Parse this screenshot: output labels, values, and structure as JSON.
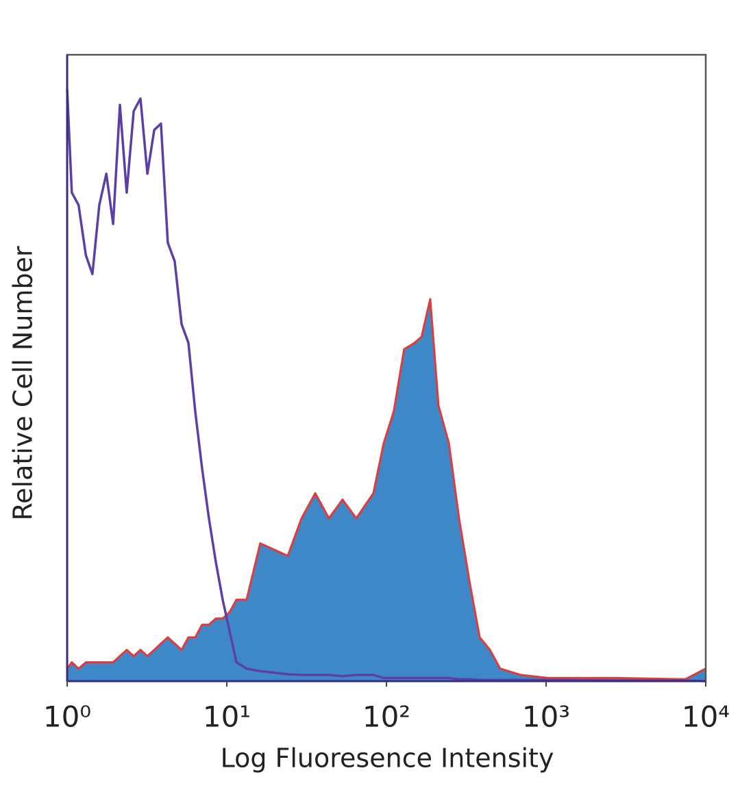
{
  "chart_data": {
    "type": "histogram-overlay",
    "xlabel": "Log Fluoresence Intensity",
    "ylabel": "Relative Cell Number",
    "xscale": "log",
    "xlim": [
      1,
      10000
    ],
    "ylim": [
      0,
      100
    ],
    "xticks": [
      {
        "value": 1,
        "label": "10⁰"
      },
      {
        "value": 10,
        "label": "10¹"
      },
      {
        "value": 100,
        "label": "10²"
      },
      {
        "value": 1000,
        "label": "10³"
      },
      {
        "value": 10000,
        "label": "10⁴"
      }
    ],
    "grid": false,
    "x": [
      1,
      1.07,
      1.18,
      1.31,
      1.44,
      1.59,
      1.76,
      1.94,
      2.14,
      2.36,
      2.61,
      2.88,
      3.18,
      3.51,
      3.87,
      4.27,
      4.72,
      5.21,
      5.75,
      6.35,
      7.0,
      7.73,
      8.54,
      9.42,
      10.4,
      11.5,
      13.3,
      16.2,
      24.1,
      29.4,
      35.8,
      43.6,
      53.1,
      64.7,
      82.8,
      96.1,
      111,
      129,
      150,
      166,
      188,
      212,
      246,
      285,
      331,
      384,
      445,
      516,
      694,
      1030,
      2770,
      7430,
      10000
    ],
    "series": [
      {
        "color": "#3f88c8",
        "outline": "#e23a3a",
        "filled": true,
        "values": [
          2,
          3,
          2,
          3,
          3,
          3,
          3,
          3,
          4,
          5,
          4,
          5,
          4,
          5,
          6,
          7,
          6,
          5,
          7,
          7,
          9,
          9,
          10,
          10,
          11,
          13,
          13,
          22,
          20,
          26,
          30,
          26,
          29,
          26,
          30,
          38,
          43,
          53,
          54,
          55,
          61,
          44,
          38,
          26,
          16,
          7,
          5,
          2,
          1,
          0.5,
          0.5,
          0.3,
          2
        ]
      },
      {
        "color": "#5b3fa6",
        "filled": false,
        "values": [
          94.5,
          78,
          76,
          68,
          65,
          76,
          81,
          73,
          92,
          78,
          91,
          93,
          81,
          88,
          89,
          70,
          67,
          57,
          54,
          43,
          34,
          26,
          19,
          13,
          8,
          3,
          2,
          1.6,
          1.1,
          1,
          1,
          1,
          0.8,
          1,
          1,
          0.5,
          0.5,
          0.5,
          0.5,
          0.5,
          0.5,
          0.5,
          0.5,
          0.3,
          0.3,
          0.2,
          0.2,
          0.2,
          0.2,
          0.2,
          0.1,
          0.1,
          0
        ]
      }
    ]
  }
}
